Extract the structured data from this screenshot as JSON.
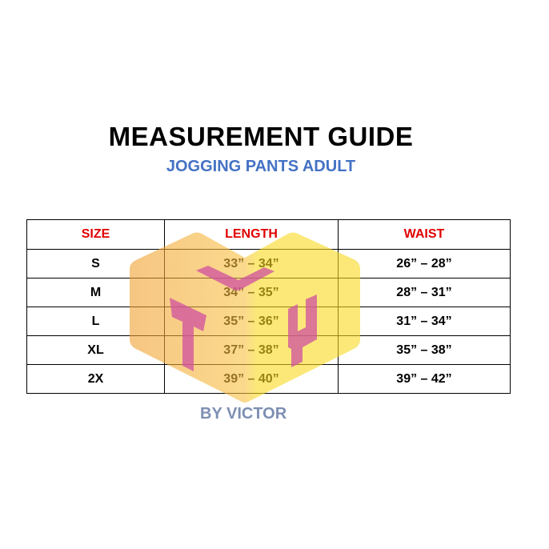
{
  "header": {
    "title": "MEASUREMENT GUIDE",
    "subtitle": "JOGGING PANTS ADULT"
  },
  "table": {
    "columns": [
      "SIZE",
      "LENGTH",
      "WAIST"
    ],
    "rows": [
      [
        "S",
        "33” – 34”",
        "26” – 28”"
      ],
      [
        "M",
        "34” – 35”",
        "28” – 31”"
      ],
      [
        "L",
        "35” – 36”",
        "31” – 34”"
      ],
      [
        "XL",
        "37” – 38”",
        "35” – 38”"
      ],
      [
        "2X",
        "39” – 40”",
        "39” – 42”"
      ]
    ]
  },
  "watermark": {
    "credit": "BY VICTOR",
    "colors": {
      "left": "#f0a030",
      "right": "#f8d820",
      "letters": "#d050a0"
    }
  },
  "colors": {
    "header_text": "#e00000",
    "subtitle": "#4472c4"
  }
}
